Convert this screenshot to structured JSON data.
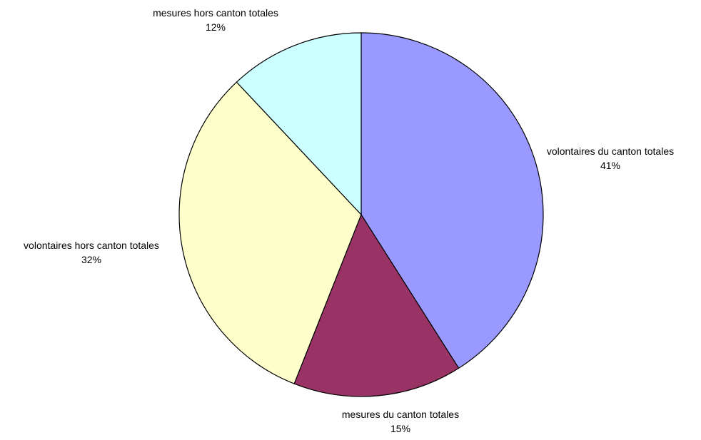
{
  "chart_data": {
    "type": "pie",
    "title": "",
    "start_angle_deg": 0,
    "direction": "clockwise",
    "slices": [
      {
        "label": "volontaires du canton totales",
        "value": 41,
        "value_label": "41%",
        "color": "#9999ff"
      },
      {
        "label": "mesures du canton totales",
        "value": 15,
        "value_label": "15%",
        "color": "#993366"
      },
      {
        "label": "volontaires hors canton totales",
        "value": 32,
        "value_label": "32%",
        "color": "#ffffcc"
      },
      {
        "label": "mesures hors canton totales",
        "value": 12,
        "value_label": "12%",
        "color": "#ccffff"
      }
    ]
  }
}
